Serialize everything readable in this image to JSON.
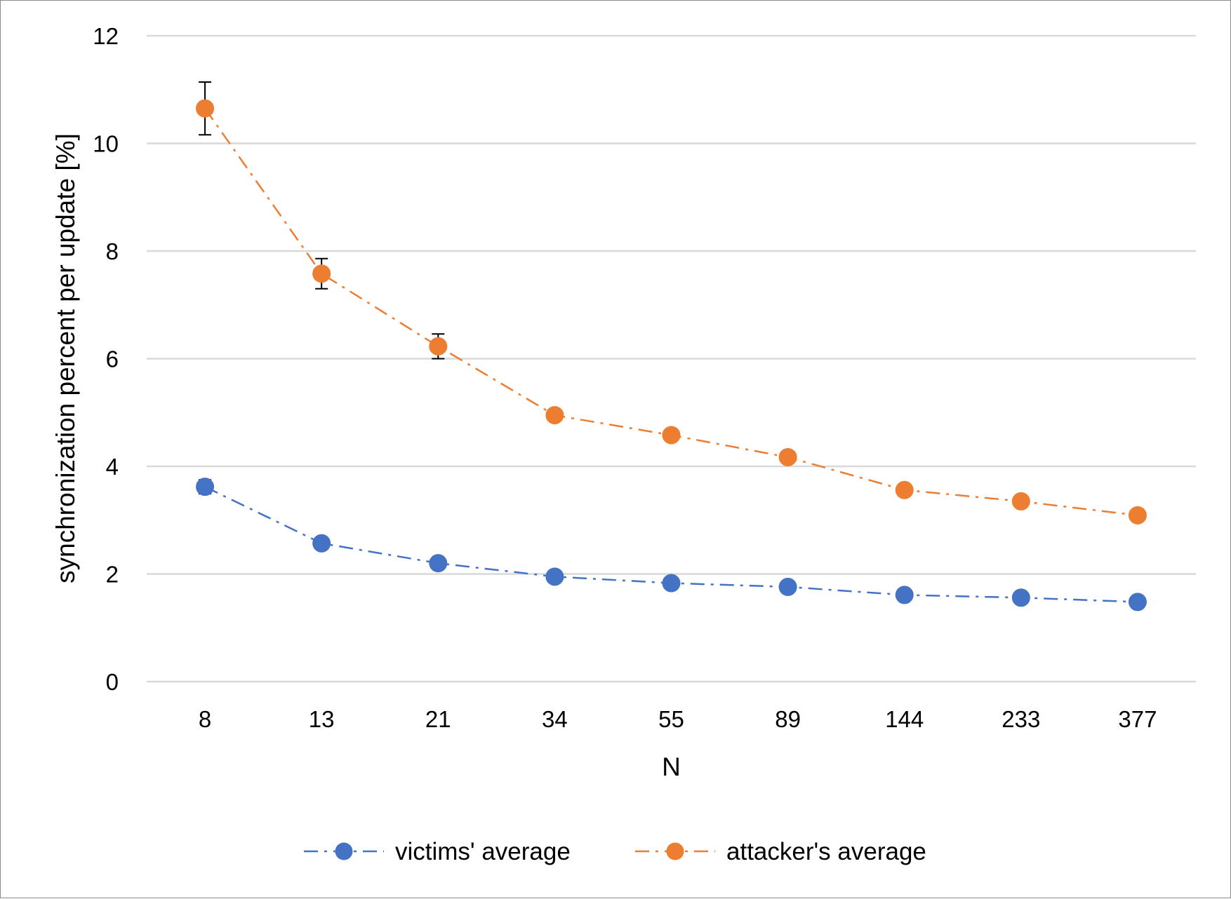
{
  "chart_data": {
    "type": "line",
    "title": "",
    "xlabel": "N",
    "ylabel": "synchronization percent per update [%]",
    "categories": [
      "8",
      "13",
      "21",
      "34",
      "55",
      "89",
      "144",
      "233",
      "377"
    ],
    "ylim": [
      0,
      12
    ],
    "yticks": [
      0,
      2,
      4,
      6,
      8,
      10,
      12
    ],
    "grid": "horizontal",
    "legend_position": "bottom",
    "series": [
      {
        "name": "victims' average",
        "color": "#4472C4",
        "line_style": "dash-dot",
        "marker": "circle",
        "values": [
          3.62,
          2.57,
          2.2,
          1.95,
          1.83,
          1.76,
          1.61,
          1.56,
          1.48
        ],
        "error": [
          0.13,
          0.03,
          0.03,
          0.02,
          0.02,
          0.02,
          0.02,
          0.02,
          0.02
        ]
      },
      {
        "name": "attacker's average",
        "color": "#ED7D31",
        "line_style": "dash-dot",
        "marker": "circle",
        "values": [
          10.65,
          7.58,
          6.23,
          4.95,
          4.58,
          4.17,
          3.56,
          3.35,
          3.09
        ],
        "error": [
          0.49,
          0.28,
          0.23,
          0.1,
          0.05,
          0.05,
          0.04,
          0.04,
          0.04
        ]
      }
    ]
  }
}
